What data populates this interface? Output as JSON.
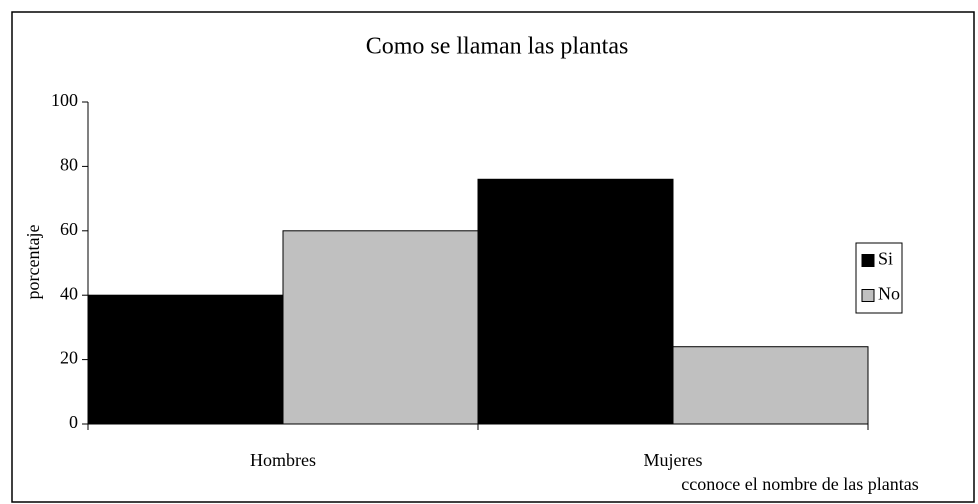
{
  "chart_data": {
    "type": "bar",
    "title": "Como se llaman las plantas",
    "x_label": "cconoce el nombre de las plantas",
    "y_label": "porcentaje",
    "categories": [
      "Hombres",
      "Mujeres"
    ],
    "series": [
      {
        "name": "Si",
        "color": "#000000",
        "values": [
          40,
          76
        ]
      },
      {
        "name": "No",
        "color": "#c0c0c0",
        "values": [
          60,
          24
        ]
      }
    ],
    "ylim": [
      0,
      100
    ],
    "yticks": [
      0,
      20,
      40,
      60,
      80,
      100
    ],
    "grid": false,
    "legend": "right"
  }
}
